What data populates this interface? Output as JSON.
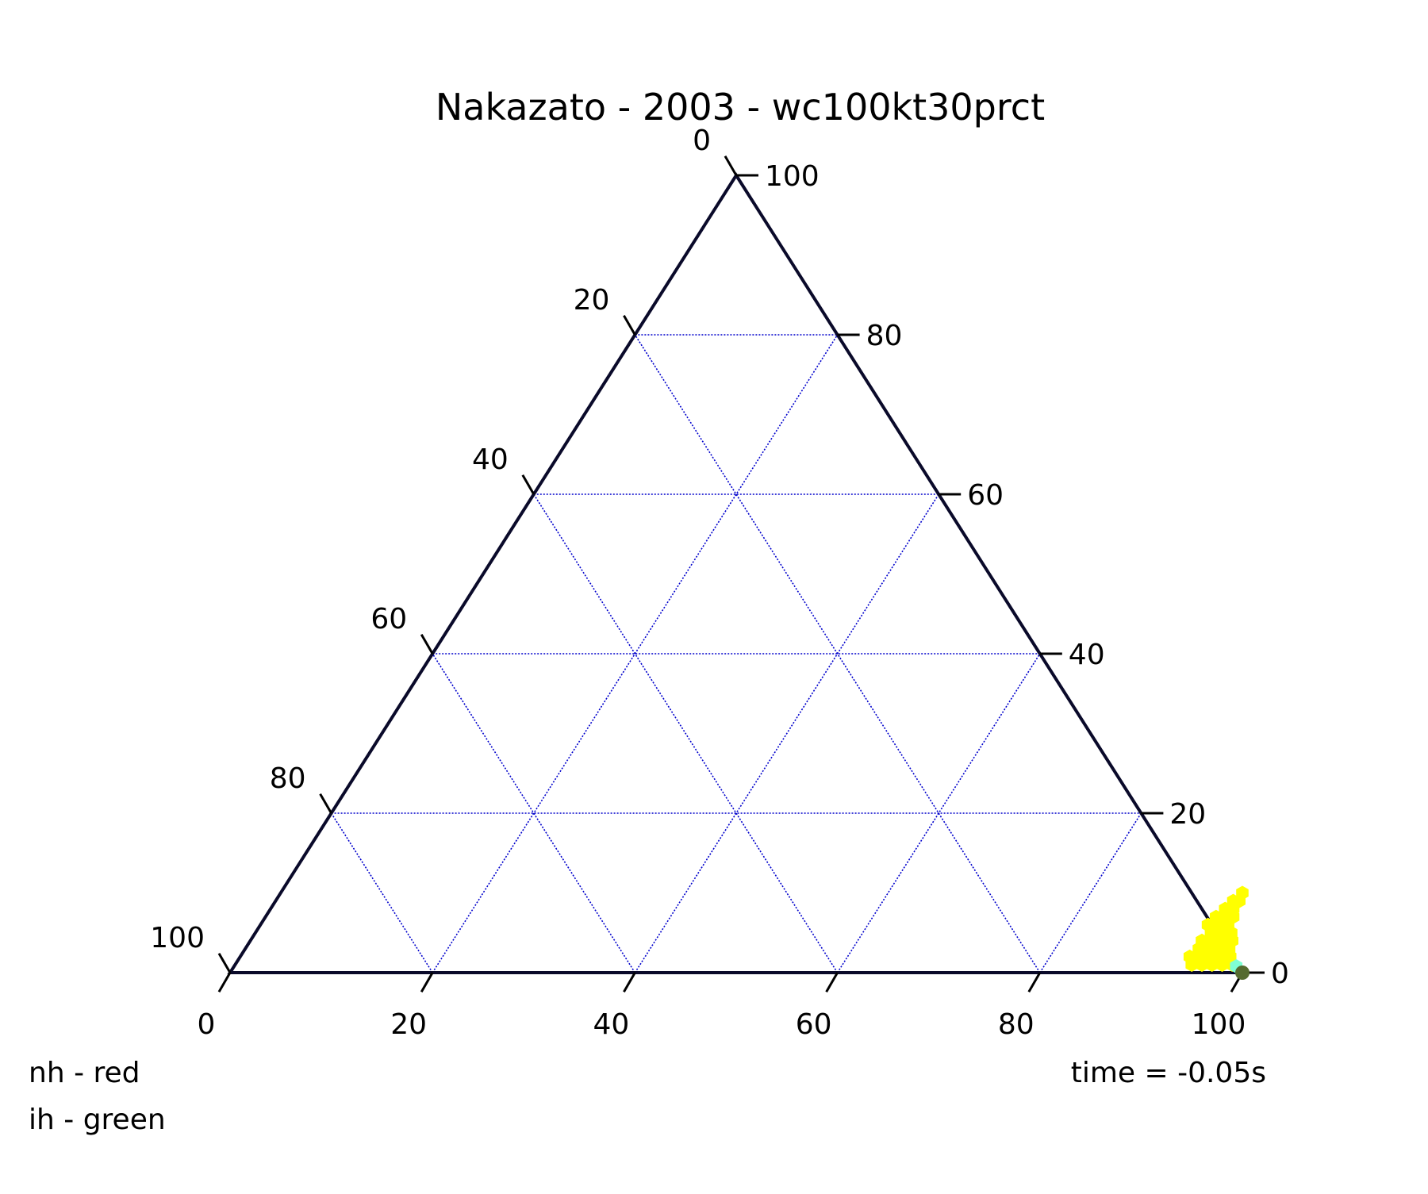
{
  "chart_data": {
    "type": "scatter",
    "plot": "ternary",
    "title": "Nakazato - 2003 - wc100kt30prct",
    "scale": [
      0,
      100
    ],
    "grid": true,
    "grid_style": "dotted",
    "ticks": {
      "left": [
        "0",
        "20",
        "40",
        "60",
        "80",
        "100"
      ],
      "right": [
        "0",
        "20",
        "40",
        "60",
        "80",
        "100"
      ],
      "bottom": [
        "0",
        "20",
        "40",
        "60",
        "80",
        "100"
      ]
    },
    "annotations": {
      "legend_lines": [
        "nh - red",
        "ih - green"
      ],
      "time_label": "time = -0.05s"
    },
    "series": [
      {
        "color": "#ffff00",
        "marker": "hexagon",
        "points": [
          {
            "b": 94.5,
            "r": 1.0
          },
          {
            "b": 95.5,
            "r": 1.0
          },
          {
            "b": 96.5,
            "r": 1.0
          },
          {
            "b": 97.5,
            "r": 1.0
          },
          {
            "b": 98.5,
            "r": 1.0
          },
          {
            "b": 93.8,
            "r": 2.0
          },
          {
            "b": 94.8,
            "r": 2.0
          },
          {
            "b": 95.8,
            "r": 2.0
          },
          {
            "b": 96.8,
            "r": 2.0
          },
          {
            "b": 97.8,
            "r": 2.0
          },
          {
            "b": 94.2,
            "r": 3.0
          },
          {
            "b": 95.2,
            "r": 3.0
          },
          {
            "b": 96.2,
            "r": 3.0
          },
          {
            "b": 97.2,
            "r": 3.0
          },
          {
            "b": 94.0,
            "r": 4.0
          },
          {
            "b": 95.0,
            "r": 4.0
          },
          {
            "b": 96.0,
            "r": 4.0
          },
          {
            "b": 97.0,
            "r": 4.0
          },
          {
            "b": 94.4,
            "r": 5.0
          },
          {
            "b": 95.4,
            "r": 5.0
          },
          {
            "b": 96.4,
            "r": 5.0
          },
          {
            "b": 93.6,
            "r": 6.0
          },
          {
            "b": 94.6,
            "r": 6.0
          },
          {
            "b": 95.6,
            "r": 6.0
          },
          {
            "b": 93.9,
            "r": 7.0
          },
          {
            "b": 94.9,
            "r": 7.0
          },
          {
            "b": 95.6,
            "r": 7.0
          },
          {
            "b": 94.3,
            "r": 8.0
          },
          {
            "b": 95.1,
            "r": 8.0
          },
          {
            "b": 94.6,
            "r": 9.0
          },
          {
            "b": 95.2,
            "r": 9.0
          },
          {
            "b": 95.0,
            "r": 10.0
          }
        ]
      },
      {
        "color": "#7fffd4",
        "marker": "hexagon",
        "points": [
          {
            "b": 99.0,
            "r": 0.8
          }
        ]
      },
      {
        "color": "#556b2f",
        "marker": "circle",
        "points": [
          {
            "b": 100.0,
            "r": 0.0
          }
        ]
      }
    ]
  }
}
